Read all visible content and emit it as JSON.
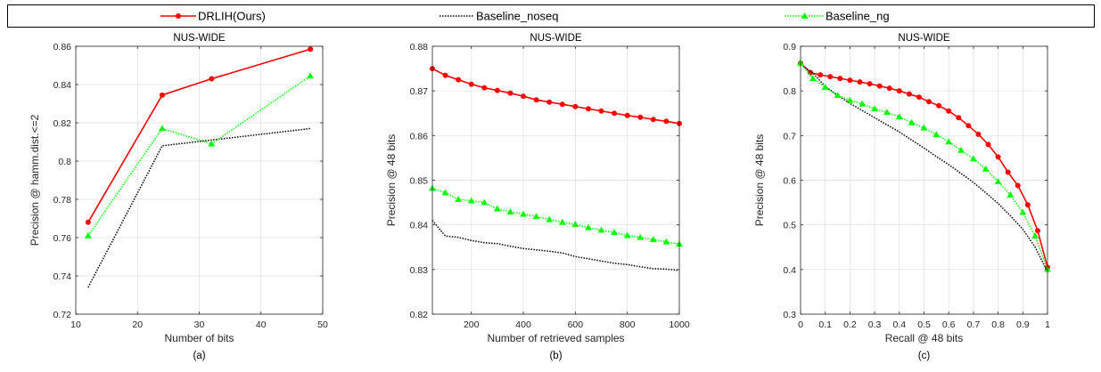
{
  "legend": {
    "placement": "top",
    "entries": [
      {
        "label": "DRLIH(Ours)",
        "color": "#ff0000",
        "style": "solid",
        "marker": "circle"
      },
      {
        "label": "Baseline_noseq",
        "color": "#000000",
        "style": "dotted",
        "marker": "none"
      },
      {
        "label": "Baseline_ng",
        "color": "#00ff00",
        "style": "dotted",
        "marker": "triangle"
      }
    ]
  },
  "chart_data": [
    {
      "type": "line",
      "title": "NUS-WIDE",
      "xlabel": "Number of bits",
      "ylabel": "Precision @ hamm.dist.<=2",
      "caption": "(a)",
      "xlim": [
        10,
        50
      ],
      "ylim": [
        0.72,
        0.86
      ],
      "xticks": [
        10,
        20,
        30,
        40,
        50
      ],
      "yticks": [
        0.72,
        0.74,
        0.76,
        0.78,
        0.8,
        0.82,
        0.84,
        0.86
      ],
      "xtick_labels": [
        "10",
        "20",
        "30",
        "40",
        "50"
      ],
      "ytick_labels": [
        "0.72",
        "0.74",
        "0.76",
        "0.78",
        "0.8",
        "0.82",
        "0.84",
        "0.86"
      ],
      "grid": true,
      "series": [
        {
          "name": "DRLIH(Ours)",
          "x": [
            12,
            24,
            32,
            48
          ],
          "y": [
            0.768,
            0.8345,
            0.843,
            0.8585
          ]
        },
        {
          "name": "Baseline_noseq",
          "x": [
            12,
            24,
            32,
            48
          ],
          "y": [
            0.734,
            0.808,
            0.811,
            0.817
          ]
        },
        {
          "name": "Baseline_ng",
          "x": [
            12,
            24,
            32,
            48
          ],
          "y": [
            0.761,
            0.817,
            0.809,
            0.8445
          ]
        }
      ]
    },
    {
      "type": "line",
      "title": "NUS-WIDE",
      "xlabel": "Number of retrieved samples",
      "ylabel": "Precision @ 48 bits",
      "caption": "(b)",
      "xlim": [
        50,
        1000
      ],
      "ylim": [
        0.82,
        0.88
      ],
      "xticks": [
        200,
        400,
        600,
        800,
        1000
      ],
      "yticks": [
        0.82,
        0.83,
        0.84,
        0.85,
        0.86,
        0.87,
        0.88
      ],
      "xtick_labels": [
        "200",
        "400",
        "600",
        "800",
        "1000"
      ],
      "ytick_labels": [
        "0.82",
        "0.83",
        "0.84",
        "0.85",
        "0.86",
        "0.87",
        "0.88"
      ],
      "grid": true,
      "series": [
        {
          "name": "DRLIH(Ours)",
          "x": [
            50,
            100,
            150,
            200,
            250,
            300,
            350,
            400,
            450,
            500,
            550,
            600,
            650,
            700,
            750,
            800,
            850,
            900,
            950,
            1000
          ],
          "y": [
            0.875,
            0.8735,
            0.8725,
            0.8715,
            0.8707,
            0.8701,
            0.8695,
            0.8688,
            0.868,
            0.8675,
            0.867,
            0.8665,
            0.866,
            0.8655,
            0.865,
            0.8645,
            0.8641,
            0.8636,
            0.8632,
            0.8627
          ]
        },
        {
          "name": "Baseline_noseq",
          "x": [
            50,
            100,
            150,
            200,
            250,
            300,
            350,
            400,
            450,
            500,
            550,
            600,
            650,
            700,
            750,
            800,
            850,
            900,
            950,
            1000
          ],
          "y": [
            0.841,
            0.8375,
            0.8372,
            0.8365,
            0.836,
            0.8358,
            0.8352,
            0.8347,
            0.8344,
            0.8341,
            0.8337,
            0.8329,
            0.8324,
            0.8319,
            0.8314,
            0.8311,
            0.8306,
            0.8302,
            0.8301,
            0.8298
          ]
        },
        {
          "name": "Baseline_ng",
          "x": [
            50,
            100,
            150,
            200,
            250,
            300,
            350,
            400,
            450,
            500,
            550,
            600,
            650,
            700,
            750,
            800,
            850,
            900,
            950,
            1000
          ],
          "y": [
            0.8482,
            0.8472,
            0.8457,
            0.8454,
            0.845,
            0.8436,
            0.8429,
            0.8424,
            0.8419,
            0.8412,
            0.8406,
            0.8401,
            0.8394,
            0.8388,
            0.8383,
            0.8376,
            0.8372,
            0.8367,
            0.8362,
            0.8357
          ]
        }
      ]
    },
    {
      "type": "line",
      "title": "NUS-WIDE",
      "xlabel": "Recall @ 48 bits",
      "ylabel": "Precision @ 48 bits",
      "caption": "(c)",
      "xlim": [
        0,
        1
      ],
      "ylim": [
        0.3,
        0.9
      ],
      "xticks": [
        0,
        0.1,
        0.2,
        0.3,
        0.4,
        0.5,
        0.6,
        0.7,
        0.8,
        0.9,
        1
      ],
      "yticks": [
        0.3,
        0.4,
        0.5,
        0.6,
        0.7,
        0.8,
        0.9
      ],
      "xtick_labels": [
        "0",
        "0.1",
        "0.2",
        "0.3",
        "0.4",
        "0.5",
        "0.6",
        "0.7",
        "0.8",
        "0.9",
        "1"
      ],
      "ytick_labels": [
        "0.3",
        "0.4",
        "0.5",
        "0.6",
        "0.7",
        "0.8",
        "0.9"
      ],
      "grid": true,
      "series": [
        {
          "name": "DRLIH(Ours)",
          "x": [
            0,
            0.04,
            0.08,
            0.12,
            0.16,
            0.2,
            0.24,
            0.28,
            0.32,
            0.36,
            0.4,
            0.44,
            0.48,
            0.52,
            0.56,
            0.6,
            0.64,
            0.68,
            0.72,
            0.76,
            0.8,
            0.84,
            0.88,
            0.92,
            0.96,
            1.0
          ],
          "y": [
            0.862,
            0.841,
            0.836,
            0.832,
            0.828,
            0.824,
            0.82,
            0.816,
            0.811,
            0.806,
            0.8,
            0.793,
            0.786,
            0.776,
            0.767,
            0.755,
            0.74,
            0.722,
            0.703,
            0.68,
            0.652,
            0.618,
            0.588,
            0.545,
            0.487,
            0.405
          ]
        },
        {
          "name": "Baseline_noseq",
          "x": [
            0,
            0.05,
            0.1,
            0.15,
            0.2,
            0.25,
            0.3,
            0.35,
            0.4,
            0.45,
            0.5,
            0.55,
            0.6,
            0.65,
            0.7,
            0.75,
            0.8,
            0.85,
            0.9,
            0.95,
            1.0
          ],
          "y": [
            0.86,
            0.84,
            0.81,
            0.79,
            0.772,
            0.756,
            0.74,
            0.724,
            0.708,
            0.69,
            0.672,
            0.653,
            0.635,
            0.615,
            0.595,
            0.572,
            0.548,
            0.52,
            0.49,
            0.45,
            0.395
          ]
        },
        {
          "name": "Baseline_ng",
          "x": [
            0,
            0.05,
            0.1,
            0.15,
            0.2,
            0.25,
            0.3,
            0.35,
            0.4,
            0.45,
            0.5,
            0.55,
            0.6,
            0.65,
            0.7,
            0.75,
            0.8,
            0.85,
            0.9,
            0.95,
            1.0
          ],
          "y": [
            0.862,
            0.828,
            0.808,
            0.79,
            0.779,
            0.771,
            0.76,
            0.752,
            0.742,
            0.729,
            0.717,
            0.702,
            0.686,
            0.667,
            0.648,
            0.625,
            0.597,
            0.567,
            0.528,
            0.475,
            0.4
          ]
        }
      ]
    }
  ]
}
